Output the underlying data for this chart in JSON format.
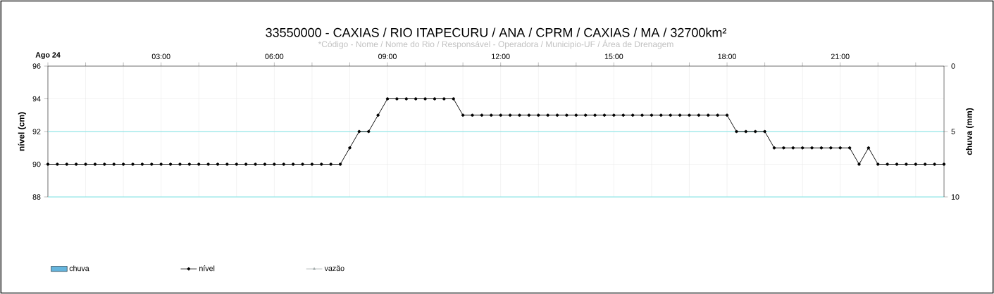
{
  "chart_data": [
    {
      "type": "line",
      "title": "33550000 - CAXIAS / RIO ITAPECURU / ANA / CPRM / CAXIAS / MA / 32700km²",
      "subtitle": "*Código - Nome / Nome do Rio / Responsável - Operadora / Municipio-UF / Área de Drenagem",
      "ylabel": "nível (cm)",
      "y2label": "chuva (mm)",
      "x": [
        0,
        0.25,
        0.5,
        0.75,
        1,
        1.25,
        1.5,
        1.75,
        2,
        2.25,
        2.5,
        2.75,
        3,
        3.25,
        3.5,
        3.75,
        4,
        4.25,
        4.5,
        4.75,
        5,
        5.25,
        5.5,
        5.75,
        6,
        6.25,
        6.5,
        6.75,
        7,
        7.25,
        7.5,
        7.75,
        8,
        8.25,
        8.5,
        8.75,
        9,
        9.25,
        9.5,
        9.75,
        10,
        10.25,
        10.5,
        10.75,
        11,
        11.25,
        11.5,
        11.75,
        12,
        12.25,
        12.5,
        12.75,
        13,
        13.25,
        13.5,
        13.75,
        14,
        14.25,
        14.5,
        14.75,
        15,
        15.25,
        15.5,
        15.75,
        16,
        16.25,
        16.5,
        16.75,
        17,
        17.25,
        17.5,
        17.75,
        18,
        18.25,
        18.5,
        18.75,
        19,
        19.25,
        19.5,
        19.75,
        20,
        20.25,
        20.5,
        20.75,
        21,
        21.25,
        21.5,
        21.75,
        22,
        22.25,
        22.5,
        22.75,
        23,
        23.25,
        23.5,
        23.75
      ],
      "series": [
        {
          "name": "chuva",
          "type": "bar",
          "color": "#65b5dd",
          "values": [
            null,
            null,
            null,
            null,
            null,
            null,
            null,
            null,
            null,
            null,
            null,
            null,
            null,
            null,
            null,
            null,
            null,
            null,
            null,
            null,
            null,
            null,
            null,
            null,
            null,
            null,
            null,
            null,
            null,
            null,
            null,
            null,
            null,
            null,
            null,
            null,
            null,
            null,
            null,
            null,
            null,
            null,
            null,
            null,
            null,
            null,
            null,
            null,
            null,
            null,
            null,
            null,
            null,
            null,
            null,
            null,
            null,
            null,
            null,
            null,
            null,
            null,
            null,
            null,
            null,
            null,
            null,
            null,
            null,
            null,
            null,
            null,
            null,
            null,
            null,
            null,
            null,
            null,
            null,
            null,
            null,
            null,
            null,
            null,
            null,
            null,
            null,
            null,
            null,
            null,
            null,
            null,
            null,
            null,
            null,
            null
          ]
        },
        {
          "name": "nível",
          "type": "line",
          "color": "#000000",
          "values": [
            90,
            90,
            90,
            90,
            90,
            90,
            90,
            90,
            90,
            90,
            90,
            90,
            90,
            90,
            90,
            90,
            90,
            90,
            90,
            90,
            90,
            90,
            90,
            90,
            90,
            90,
            90,
            90,
            90,
            90,
            90,
            90,
            91,
            92,
            92,
            93,
            94,
            94,
            94,
            94,
            94,
            94,
            94,
            94,
            93,
            93,
            93,
            93,
            93,
            93,
            93,
            93,
            93,
            93,
            93,
            93,
            93,
            93,
            93,
            93,
            93,
            93,
            93,
            93,
            93,
            93,
            93,
            93,
            93,
            93,
            93,
            93,
            93,
            92,
            92,
            92,
            92,
            91,
            91,
            91,
            91,
            91,
            91,
            91,
            91,
            91,
            90,
            91,
            90,
            90,
            90,
            90,
            90,
            90,
            90,
            90
          ]
        },
        {
          "name": "vazão",
          "type": "line",
          "color": "#a3abab",
          "marker": "triangle",
          "values": [
            null,
            null,
            null,
            null,
            null,
            null,
            null,
            null,
            null,
            null,
            null,
            null,
            null,
            null,
            null,
            null,
            null,
            null,
            null,
            null,
            null,
            null,
            null,
            null,
            null,
            null,
            null,
            null,
            null,
            null,
            null,
            null,
            null,
            null,
            null,
            null,
            null,
            null,
            null,
            null,
            null,
            null,
            null,
            null,
            null,
            null,
            null,
            null,
            null,
            null,
            null,
            null,
            null,
            null,
            null,
            null,
            null,
            null,
            null,
            null,
            null,
            null,
            null,
            null,
            null,
            null,
            null,
            null,
            null,
            null,
            null,
            null,
            null,
            null,
            null,
            null,
            null,
            null,
            null,
            null,
            null,
            null,
            null,
            null,
            null,
            null,
            null,
            null,
            null,
            null,
            null,
            null,
            null,
            null,
            null,
            null
          ]
        }
      ],
      "xlim": [
        0,
        23.75
      ],
      "xticks": [
        {
          "value": 0,
          "label": "Ago 24"
        },
        {
          "value": 1,
          "label": null
        },
        {
          "value": 2,
          "label": null
        },
        {
          "value": 3,
          "label": "03:00"
        },
        {
          "value": 4,
          "label": null
        },
        {
          "value": 5,
          "label": null
        },
        {
          "value": 6,
          "label": "06:00"
        },
        {
          "value": 7,
          "label": null
        },
        {
          "value": 8,
          "label": null
        },
        {
          "value": 9,
          "label": "09:00"
        },
        {
          "value": 10,
          "label": null
        },
        {
          "value": 11,
          "label": null
        },
        {
          "value": 12,
          "label": "12:00"
        },
        {
          "value": 13,
          "label": null
        },
        {
          "value": 14,
          "label": null
        },
        {
          "value": 15,
          "label": "15:00"
        },
        {
          "value": 16,
          "label": null
        },
        {
          "value": 17,
          "label": null
        },
        {
          "value": 18,
          "label": "18:00"
        },
        {
          "value": 19,
          "label": null
        },
        {
          "value": 20,
          "label": null
        },
        {
          "value": 21,
          "label": "21:00"
        },
        {
          "value": 22,
          "label": null
        },
        {
          "value": 23,
          "label": null
        }
      ],
      "ylim": [
        88,
        96
      ],
      "yticks": [
        88,
        90,
        92,
        94,
        96
      ],
      "y2lim": [
        10,
        0
      ],
      "y2ticks": [
        0,
        5,
        10
      ],
      "ref_lines": [
        {
          "axis": "y",
          "value": 92,
          "color": "#7fe5e8"
        },
        {
          "axis": "y",
          "value": 88,
          "color": "#7fe5e8"
        }
      ],
      "grid": true,
      "legend": "bottom",
      "marker": "circle",
      "line_style": "solid"
    }
  ]
}
